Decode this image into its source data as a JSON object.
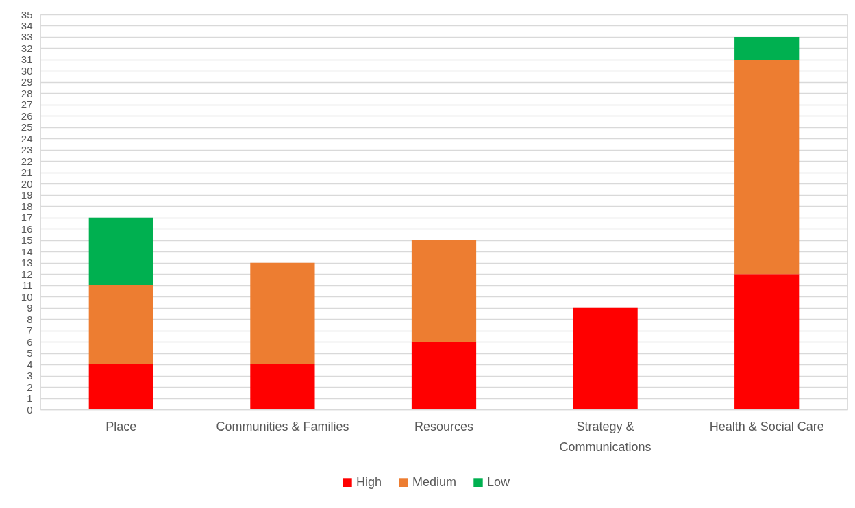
{
  "chart_data": {
    "type": "bar",
    "stacked": true,
    "categories": [
      "Place",
      "Communities & Families",
      "Resources",
      "Strategy & Communications",
      "Health & Social Care"
    ],
    "series": [
      {
        "name": "High",
        "color": "#ff0000",
        "values": [
          4,
          4,
          6,
          9,
          12
        ]
      },
      {
        "name": "Medium",
        "color": "#ed7d31",
        "values": [
          7,
          9,
          9,
          null,
          19
        ]
      },
      {
        "name": "Low",
        "color": "#00b050",
        "values": [
          6,
          null,
          null,
          null,
          2
        ]
      }
    ],
    "ylim": [
      0,
      35
    ],
    "yticks": [
      0,
      1,
      2,
      3,
      4,
      5,
      6,
      7,
      8,
      9,
      10,
      11,
      12,
      13,
      14,
      15,
      16,
      17,
      18,
      19,
      20,
      21,
      22,
      23,
      24,
      25,
      26,
      27,
      28,
      29,
      30,
      31,
      32,
      33,
      34,
      35
    ],
    "grid": "y",
    "legend": "bottom"
  }
}
